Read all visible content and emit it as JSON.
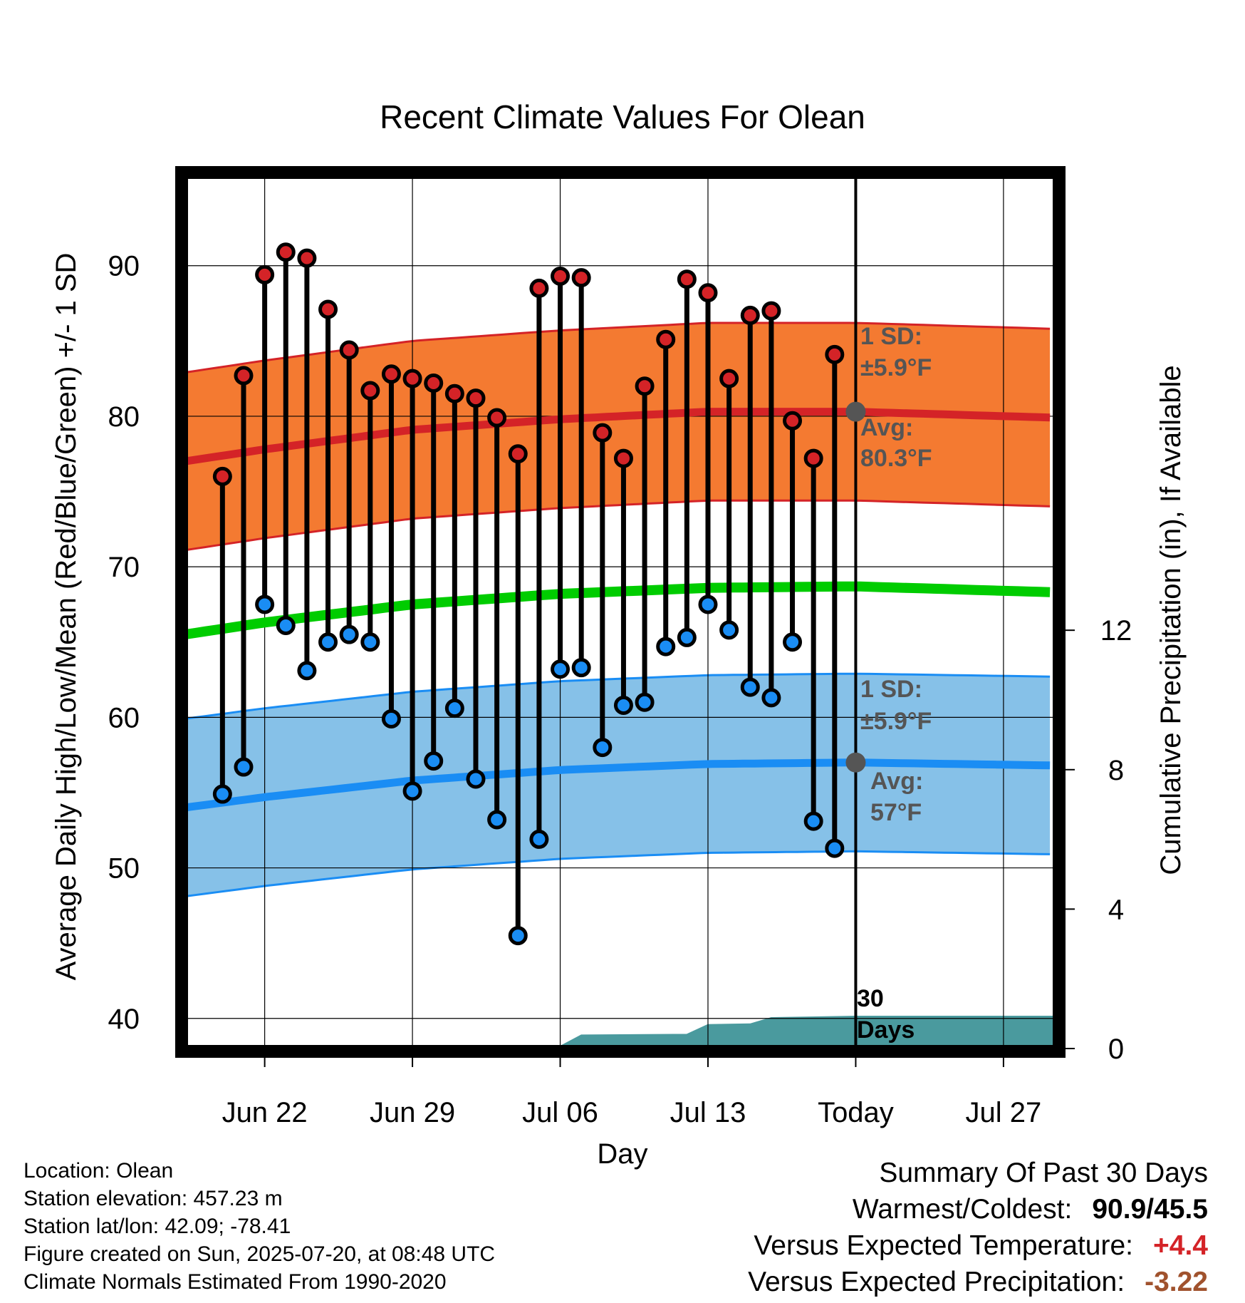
{
  "chart_data": {
    "type": "line",
    "title": "Recent Climate Values For Olean",
    "xlabel": "Day",
    "ylabel": "Average Daily High/Low/Mean (Red/Blue/Green) +/- 1 SD",
    "y2label": "Cumulative Precipitation (in), If Available",
    "x_ticks": [
      {
        "day": 22,
        "label": "Jun 22"
      },
      {
        "day": 29,
        "label": "Jun 29"
      },
      {
        "day": 36,
        "label": "Jul 06"
      },
      {
        "day": 43,
        "label": "Jul 13"
      },
      {
        "day": 50,
        "label": "Today"
      },
      {
        "day": 57,
        "label": "Jul 27"
      }
    ],
    "xlim": [
      18.2,
      59.5
    ],
    "ylim": [
      38,
      96
    ],
    "y_ticks": [
      40,
      50,
      60,
      70,
      80,
      90
    ],
    "y2_ticks": [
      0,
      4,
      8,
      12
    ],
    "y2lim": [
      0,
      25.05
    ],
    "grid": true,
    "highs": [
      76,
      82.7,
      89.4,
      90.9,
      90.5,
      87.1,
      84.4,
      81.7,
      82.8,
      82.5,
      82.2,
      81.5,
      81.2,
      79.9,
      77.5,
      88.5,
      89.3,
      89.2,
      78.9,
      77.2,
      82,
      85.1,
      89.1,
      88.2,
      82.5,
      86.7,
      87,
      79.7,
      77.2,
      84.1
    ],
    "lows": [
      54.9,
      56.7,
      67.5,
      66.1,
      63.1,
      65,
      65.5,
      65,
      59.9,
      55.1,
      57.1,
      60.6,
      55.9,
      53.2,
      45.5,
      51.9,
      63.2,
      63.3,
      58,
      60.8,
      61,
      64.7,
      65.3,
      67.5,
      65.8,
      62,
      61.3,
      65,
      53.1,
      51.3
    ],
    "series": [
      {
        "name": "Normal High",
        "x": [
          18.2,
          22,
          29,
          36,
          43,
          50,
          59.5
        ],
        "values": [
          77,
          77.8,
          79.1,
          79.8,
          80.3,
          80.3,
          79.9
        ],
        "sd": 5.9
      },
      {
        "name": "Normal Low",
        "x": [
          18.2,
          22,
          29,
          36,
          43,
          50,
          59.5
        ],
        "values": [
          54,
          54.7,
          55.8,
          56.5,
          56.9,
          57,
          56.8
        ],
        "sd": 5.9
      },
      {
        "name": "Normal Mean",
        "x": [
          18.2,
          22,
          29,
          36,
          43,
          50,
          59.5
        ],
        "values": [
          65.5,
          66.3,
          67.5,
          68.2,
          68.6,
          68.7,
          68.3
        ]
      }
    ],
    "precip": {
      "x": [
        18.2,
        28,
        28.8,
        29.5,
        36,
        37,
        42,
        43,
        45,
        46,
        50,
        59.5
      ],
      "values": [
        0,
        0,
        0.02,
        0.06,
        0.06,
        0.38,
        0.4,
        0.68,
        0.7,
        0.88,
        0.92,
        0.92
      ]
    },
    "annotations": {
      "high_sd": "1 SD:",
      "high_sd_val": "±5.9°F",
      "high_avg": "Avg:",
      "high_avg_val": "80.3°F",
      "low_sd": "1 SD:",
      "low_sd_val": "±5.9°F",
      "low_avg": "Avg:",
      "low_avg_val": "57°F",
      "days_num": "30",
      "days_word": "Days"
    },
    "colors": {
      "high_band": "#f47a31",
      "high_line": "#d42327",
      "low_band": "#86c1e8",
      "low_line": "#1a8df4",
      "mean_line": "#00cc00",
      "precip": "#4a9a9e",
      "high_marker": "#d42327",
      "low_marker": "#1a8df4",
      "avg_marker": "#555555"
    }
  },
  "footer": {
    "location": "Location: Olean",
    "elevation": "Station elevation: 457.23 m",
    "latlon": "Station lat/lon: 42.09; -78.41",
    "created": "Figure created on Sun, 2025-07-20, at 08:48 UTC",
    "normals": "Climate Normals Estimated From 1990-2020"
  },
  "summary": {
    "heading": "Summary Of Past 30 Days",
    "warmest_label": "Warmest/Coldest:",
    "warmest_value": "90.9/45.5",
    "temp_label": "Versus Expected Temperature:",
    "temp_value": "+4.4",
    "precip_label": "Versus Expected Precipitation:",
    "precip_value": "-3.22",
    "temp_color": "#d42327",
    "precip_color": "#a0522d"
  }
}
